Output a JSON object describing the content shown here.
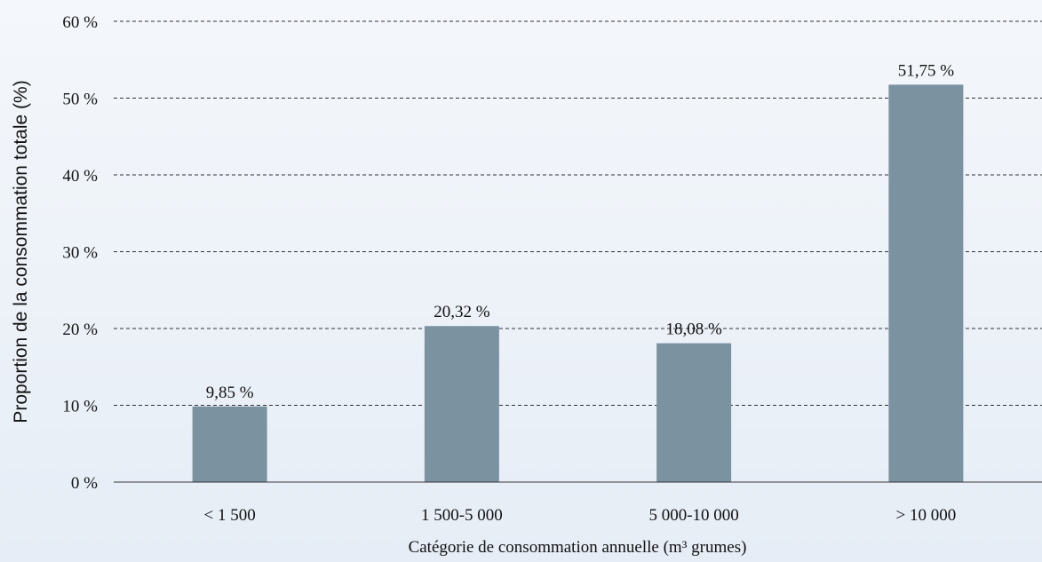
{
  "chart_data": {
    "type": "bar",
    "categories": [
      "< 1 500",
      "1 500-5 000",
      "5 000-10 000",
      "> 10 000"
    ],
    "values": [
      9.85,
      20.32,
      18.08,
      51.75
    ],
    "data_labels": [
      "9,85 %",
      "20,32 %",
      "18,08 %",
      "51,75 %"
    ],
    "title": "",
    "xlabel": "Catégorie de consommation annuelle (m³ grumes)",
    "ylabel": "Proportion de la consommation totale (%)",
    "ylim": [
      0,
      60
    ],
    "yticks": [
      0,
      10,
      20,
      30,
      40,
      50,
      60
    ],
    "ytick_labels": [
      "0 %",
      "10 %",
      "20 %",
      "30 %",
      "40 %",
      "50 %",
      "60 %"
    ],
    "grid": "horizontal dashed",
    "bar_color": "#7b92a1",
    "legend": "none"
  }
}
